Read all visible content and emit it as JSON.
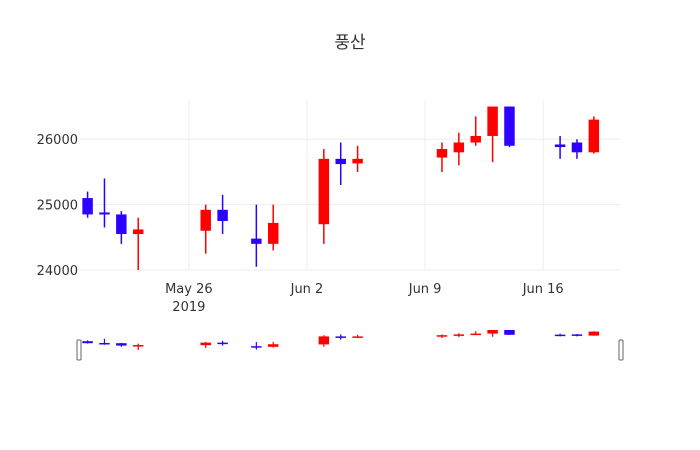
{
  "chart_data": {
    "type": "candlestick",
    "title": "풍산",
    "xlabel": "",
    "ylabel": "",
    "ylim": [
      24000,
      26600
    ],
    "xlim": [
      "2019-05-20",
      "2019-06-20"
    ],
    "grid": true,
    "rangeslider": true,
    "increasing_color": "#ff0000",
    "decreasing_color": "#2e00ff",
    "y_ticks": [
      "24000",
      "25000",
      "26000"
    ],
    "x_ticks": [
      {
        "date": "2019-05-26",
        "label": "May 26",
        "sublabel": "2019"
      },
      {
        "date": "2019-06-02",
        "label": "Jun 2",
        "sublabel": ""
      },
      {
        "date": "2019-06-09",
        "label": "Jun 9",
        "sublabel": ""
      },
      {
        "date": "2019-06-16",
        "label": "Jun 16",
        "sublabel": ""
      }
    ],
    "candles": [
      {
        "date": "2019-05-20",
        "open": 25100,
        "high": 25200,
        "low": 24800,
        "close": 24850
      },
      {
        "date": "2019-05-21",
        "open": 24880,
        "high": 25400,
        "low": 24650,
        "close": 24850
      },
      {
        "date": "2019-05-22",
        "open": 24850,
        "high": 24900,
        "low": 24400,
        "close": 24550
      },
      {
        "date": "2019-05-23",
        "open": 24550,
        "high": 24800,
        "low": 24000,
        "close": 24620
      },
      {
        "date": "2019-05-27",
        "open": 24600,
        "high": 25000,
        "low": 24250,
        "close": 24920
      },
      {
        "date": "2019-05-28",
        "open": 24920,
        "high": 25150,
        "low": 24550,
        "close": 24750
      },
      {
        "date": "2019-05-30",
        "open": 24480,
        "high": 25000,
        "low": 24050,
        "close": 24400
      },
      {
        "date": "2019-05-31",
        "open": 24400,
        "high": 25000,
        "low": 24300,
        "close": 24720
      },
      {
        "date": "2019-06-03",
        "open": 24700,
        "high": 25850,
        "low": 24400,
        "close": 25700
      },
      {
        "date": "2019-06-04",
        "open": 25700,
        "high": 25950,
        "low": 25300,
        "close": 25620
      },
      {
        "date": "2019-06-05",
        "open": 25630,
        "high": 25900,
        "low": 25500,
        "close": 25700
      },
      {
        "date": "2019-06-10",
        "open": 25720,
        "high": 25950,
        "low": 25500,
        "close": 25850
      },
      {
        "date": "2019-06-11",
        "open": 25800,
        "high": 26100,
        "low": 25600,
        "close": 25950
      },
      {
        "date": "2019-06-12",
        "open": 25950,
        "high": 26350,
        "low": 25900,
        "close": 26050
      },
      {
        "date": "2019-06-13",
        "open": 26050,
        "high": 26500,
        "low": 25650,
        "close": 26500
      },
      {
        "date": "2019-06-14",
        "open": 26500,
        "high": 26500,
        "low": 25880,
        "close": 25900
      },
      {
        "date": "2019-06-17",
        "open": 25920,
        "high": 26050,
        "low": 25700,
        "close": 25880
      },
      {
        "date": "2019-06-18",
        "open": 25950,
        "high": 26000,
        "low": 25700,
        "close": 25800
      },
      {
        "date": "2019-06-19",
        "open": 25800,
        "high": 26350,
        "low": 25780,
        "close": 26300
      }
    ]
  }
}
